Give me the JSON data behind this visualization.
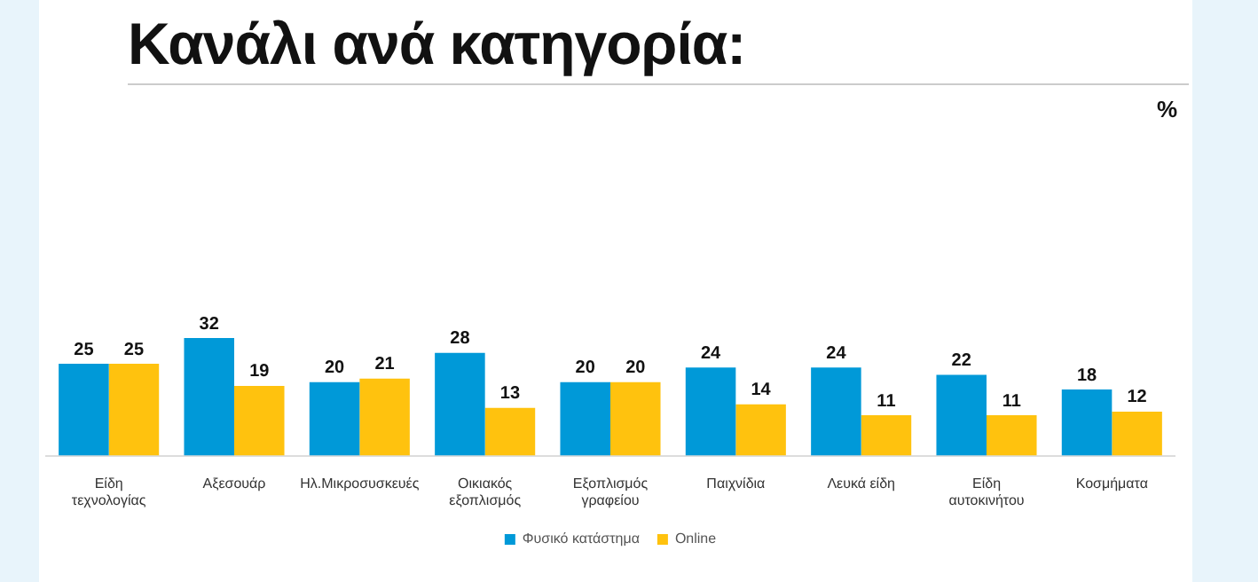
{
  "chart_data": {
    "type": "bar",
    "title": "Κανάλι ανά κατηγορία:",
    "annotations": [
      "%"
    ],
    "categories": [
      "Είδη τεχνολογίας",
      "Αξεσουάρ",
      "Ηλ.Μικροσυσκευές",
      "Οικιακός εξοπλισμός",
      "Εξοπλισμός γραφείου",
      "Παιχνίδια",
      "Λευκά είδη",
      "Είδη αυτοκινήτου",
      "Κοσμήματα"
    ],
    "series": [
      {
        "name": "Φυσικό κατάστημα",
        "color": "#0099d8",
        "values": [
          25,
          32,
          20,
          28,
          20,
          24,
          24,
          22,
          18
        ]
      },
      {
        "name": "Online",
        "color": "#ffc20e",
        "values": [
          25,
          19,
          21,
          13,
          20,
          14,
          11,
          11,
          12
        ]
      }
    ],
    "data_labels": true,
    "grid": false,
    "legend": "bottom",
    "tick_labels": "x"
  }
}
